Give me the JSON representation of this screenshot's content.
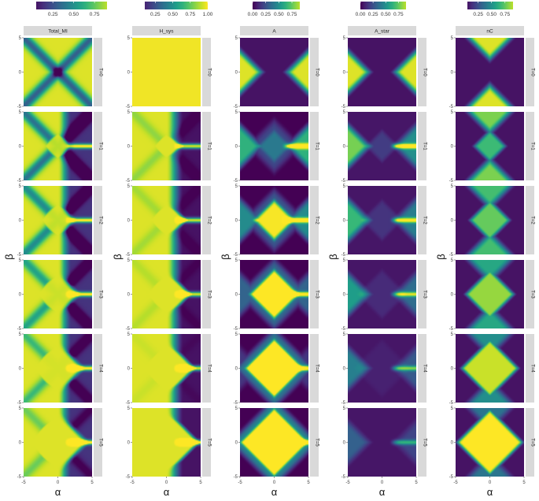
{
  "chart_data": {
    "type": "heatmap",
    "title": "",
    "x_var": "α",
    "y_var": "β",
    "x_range": [
      -5,
      5
    ],
    "y_range": [
      -5,
      5
    ],
    "x_ticks": [
      "-5",
      "0",
      "5"
    ],
    "y_ticks": [
      "-5",
      "0",
      "5"
    ],
    "xlabel": "α",
    "ylabel": "β",
    "row_strip_labels": [
      "T=0",
      "T=1",
      "T=2",
      "T=3",
      "T=4",
      "T=5"
    ],
    "colorscale": "viridis",
    "colors": {
      "viridis": [
        "#440154",
        "#482878",
        "#3e4989",
        "#31688e",
        "#26828e",
        "#1f9e89",
        "#35b779",
        "#6ece58",
        "#b5de2b",
        "#fde725"
      ],
      "strip_bg": "#d9d9d9",
      "grid": "#ffffff"
    },
    "panels": [
      {
        "title": "Total_MI",
        "legend_ticks": [
          "0.25",
          "0.50",
          "0.75"
        ],
        "legend_range": [
          0.05,
          0.9
        ]
      },
      {
        "title": "H_sys",
        "legend_ticks": [
          "0.25",
          "0.50",
          "0.75",
          "1.00"
        ],
        "legend_range": [
          0.1,
          1.0
        ]
      },
      {
        "title": "A",
        "legend_ticks": [
          "0.00",
          "0.25",
          "0.50",
          "0.75"
        ],
        "legend_range": [
          0.0,
          0.9
        ]
      },
      {
        "title": "A_star",
        "legend_ticks": [
          "0.00",
          "0.25",
          "0.50",
          "0.75"
        ],
        "legend_range": [
          0.0,
          0.9
        ]
      },
      {
        "title": "nC",
        "legend_ticks": [
          "0.25",
          "0.50",
          "0.75"
        ],
        "legend_range": [
          0.05,
          0.9
        ]
      }
    ]
  }
}
